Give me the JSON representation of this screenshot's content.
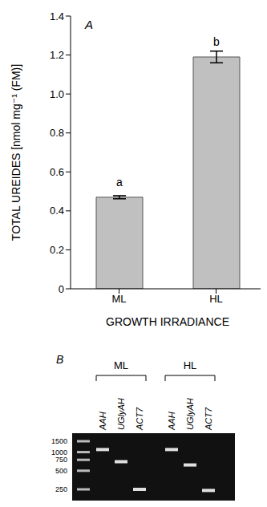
{
  "chart_data": {
    "type": "bar",
    "title": "A",
    "categories": [
      "ML",
      "HL"
    ],
    "values": [
      0.47,
      1.19
    ],
    "errors": [
      0.008,
      0.03
    ],
    "annotations": [
      "a",
      "b"
    ],
    "color": "#c0c0c0",
    "x_label": "GROWTH IRRADIANCE",
    "y_label": "TOTAL UREIDES [nmol mg⁻¹ (FM)]",
    "ylim": [
      0,
      1.4
    ],
    "yticks": [
      0,
      0.2,
      0.4,
      0.6,
      0.8,
      {
        "value": 1,
        "label": "1.0"
      },
      1.2,
      1.4
    ],
    "grid": false
  },
  "gel": {
    "label": "B",
    "ladder": [
      1500,
      1000,
      750,
      500,
      250
    ],
    "groups": [
      {
        "name": "ML",
        "lanes": [
          {
            "name": "AAH",
            "band": 1100
          },
          {
            "name": "UGlyAH",
            "band": 700
          },
          {
            "name": "ACT7",
            "band": 250
          }
        ]
      },
      {
        "name": "HL",
        "lanes": [
          {
            "name": "AAH",
            "band": 1100
          },
          {
            "name": "UGlyAH",
            "band": 620
          },
          {
            "name": "ACT7",
            "band": 240
          }
        ]
      }
    ]
  }
}
